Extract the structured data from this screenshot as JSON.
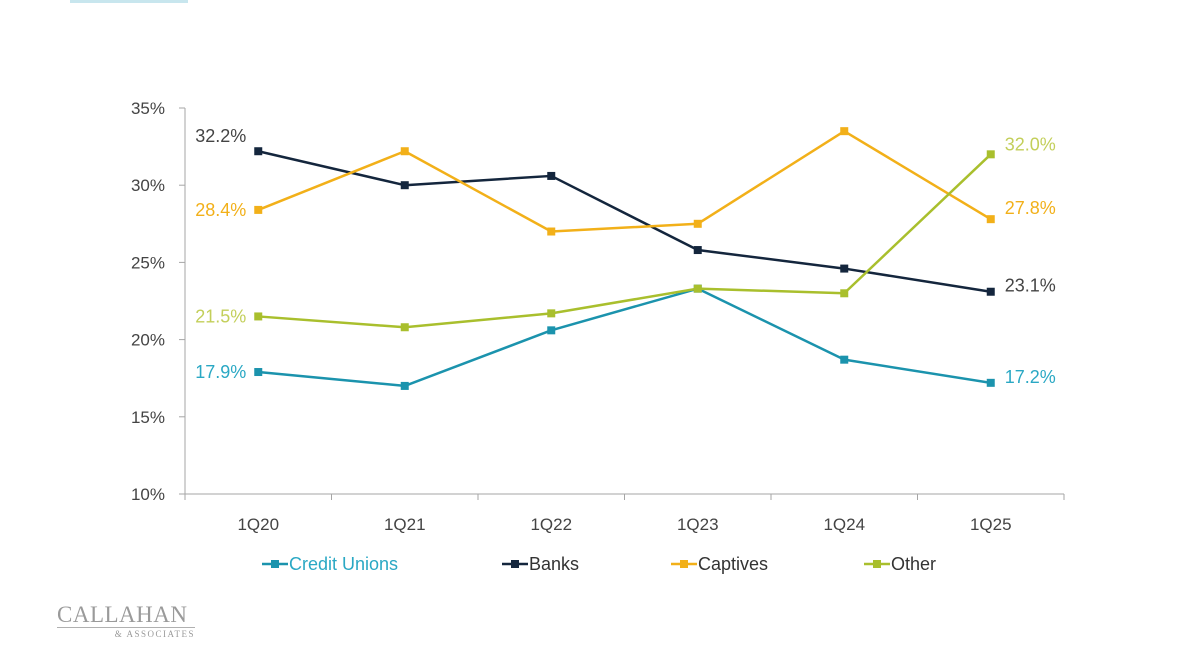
{
  "chart_data": {
    "type": "line",
    "categories": [
      "1Q20",
      "1Q21",
      "1Q22",
      "1Q23",
      "1Q24",
      "1Q25"
    ],
    "ylim": [
      10,
      35
    ],
    "yticks": [
      10,
      15,
      20,
      25,
      30,
      35
    ],
    "ytick_labels": [
      "10%",
      "15%",
      "20%",
      "25%",
      "30%",
      "35%"
    ],
    "legend_position": "bottom",
    "grid": false,
    "series": [
      {
        "name": "Credit Unions",
        "color": "#1b93ad",
        "values": [
          17.9,
          17.0,
          20.6,
          23.3,
          18.7,
          17.2
        ],
        "start_label": "17.9%",
        "end_label": "17.2%"
      },
      {
        "name": "Banks",
        "color": "#14263d",
        "values": [
          32.2,
          30.0,
          30.6,
          25.8,
          24.6,
          23.1
        ],
        "start_label": "32.2%",
        "end_label": "23.1%"
      },
      {
        "name": "Captives",
        "color": "#f2b019",
        "values": [
          28.4,
          32.2,
          27.0,
          27.5,
          33.5,
          27.8
        ],
        "start_label": "28.4%",
        "end_label": "27.8%"
      },
      {
        "name": "Other",
        "color": "#a9bf2d",
        "values": [
          21.5,
          20.8,
          21.7,
          23.3,
          23.0,
          32.0
        ],
        "start_label": "21.5%",
        "end_label": "32.0%"
      }
    ],
    "label_colors": {
      "Credit Unions": "#2aa8c4",
      "Banks": "#444444",
      "Captives": "#f2b019",
      "Other": "#c3cf5a"
    }
  },
  "logo": {
    "main": "CALLAHAN",
    "sub": "& ASSOCIATES"
  }
}
